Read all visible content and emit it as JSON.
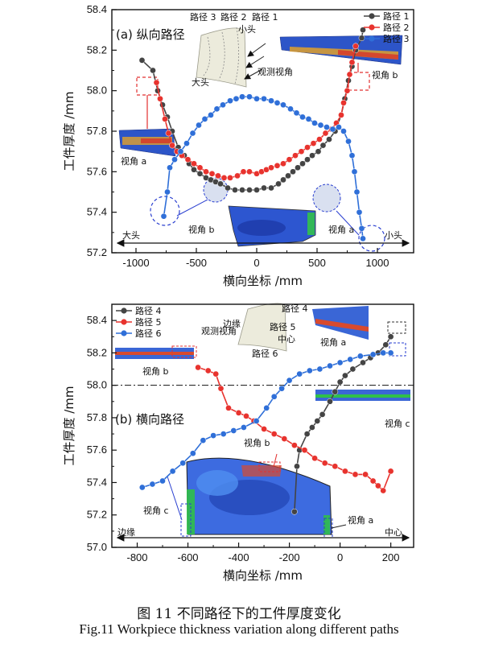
{
  "caption": {
    "cn": "图 11  不同路径下的工件厚度变化",
    "en": "Fig.11  Workpiece thickness variation along different paths"
  },
  "colors": {
    "path_gray": "#444444",
    "path_red": "#e8332e",
    "path_blue": "#2f6fd8",
    "highlight": "#e23030",
    "view_blue": "#2a3fd0"
  },
  "chart_data": [
    {
      "type": "line",
      "title": "(a) 纵向路径",
      "xlabel": "横向坐标 /mm",
      "ylabel": "工件厚度 /mm",
      "xlim": [
        -1200,
        1300
      ],
      "ylim": [
        57.2,
        58.4
      ],
      "xticks": [
        -1000,
        -500,
        0,
        500,
        1000
      ],
      "yticks": [
        57.2,
        57.4,
        57.6,
        57.8,
        58.0,
        58.2,
        58.4
      ],
      "legend": "top-right",
      "series": [
        {
          "name": "路径 1",
          "color": "#444444",
          "points": [
            [
              -950,
              58.15
            ],
            [
              -860,
              58.1
            ],
            [
              -820,
              58.0
            ],
            [
              -780,
              57.93
            ],
            [
              -740,
              57.87
            ],
            [
              -700,
              57.8
            ],
            [
              -650,
              57.72
            ],
            [
              -600,
              57.68
            ],
            [
              -560,
              57.64
            ],
            [
              -520,
              57.61
            ],
            [
              -470,
              57.59
            ],
            [
              -420,
              57.57
            ],
            [
              -380,
              57.56
            ],
            [
              -340,
              57.55
            ],
            [
              -300,
              57.54
            ],
            [
              -240,
              57.52
            ],
            [
              -180,
              57.51
            ],
            [
              -120,
              57.51
            ],
            [
              -60,
              57.51
            ],
            [
              0,
              57.51
            ],
            [
              60,
              57.52
            ],
            [
              120,
              57.52
            ],
            [
              180,
              57.54
            ],
            [
              220,
              57.56
            ],
            [
              260,
              57.58
            ],
            [
              300,
              57.6
            ],
            [
              340,
              57.62
            ],
            [
              380,
              57.64
            ],
            [
              420,
              57.66
            ],
            [
              460,
              57.68
            ],
            [
              510,
              57.7
            ],
            [
              550,
              57.73
            ],
            [
              600,
              57.76
            ],
            [
              650,
              57.8
            ],
            [
              700,
              57.88
            ],
            [
              730,
              57.96
            ],
            [
              760,
              58.05
            ],
            [
              790,
              58.12
            ],
            [
              820,
              58.2
            ],
            [
              870,
              58.26
            ],
            [
              880,
              58.3
            ]
          ]
        },
        {
          "name": "路径 2",
          "color": "#e8332e",
          "points": [
            [
              -830,
              58.04
            ],
            [
              -800,
              57.96
            ],
            [
              -760,
              57.86
            ],
            [
              -730,
              57.79
            ],
            [
              -700,
              57.73
            ],
            [
              -660,
              57.7
            ],
            [
              -620,
              57.68
            ],
            [
              -570,
              57.66
            ],
            [
              -520,
              57.64
            ],
            [
              -470,
              57.62
            ],
            [
              -420,
              57.6
            ],
            [
              -370,
              57.59
            ],
            [
              -320,
              57.58
            ],
            [
              -270,
              57.57
            ],
            [
              -220,
              57.57
            ],
            [
              -160,
              57.58
            ],
            [
              -110,
              57.6
            ],
            [
              -60,
              57.6
            ],
            [
              0,
              57.59
            ],
            [
              40,
              57.6
            ],
            [
              80,
              57.61
            ],
            [
              120,
              57.62
            ],
            [
              170,
              57.63
            ],
            [
              220,
              57.64
            ],
            [
              270,
              57.66
            ],
            [
              320,
              57.68
            ],
            [
              370,
              57.7
            ],
            [
              420,
              57.72
            ],
            [
              470,
              57.74
            ],
            [
              520,
              57.76
            ],
            [
              570,
              57.79
            ],
            [
              620,
              57.81
            ],
            [
              660,
              57.84
            ],
            [
              700,
              57.88
            ],
            [
              720,
              57.94
            ],
            [
              750,
              58.0
            ],
            [
              770,
              58.08
            ],
            [
              790,
              58.14
            ],
            [
              820,
              58.22
            ]
          ]
        },
        {
          "name": "路径 3",
          "color": "#2f6fd8",
          "points": [
            [
              -770,
              57.38
            ],
            [
              -740,
              57.5
            ],
            [
              -720,
              57.62
            ],
            [
              -680,
              57.66
            ],
            [
              -630,
              57.7
            ],
            [
              -580,
              57.74
            ],
            [
              -530,
              57.79
            ],
            [
              -480,
              57.83
            ],
            [
              -430,
              57.86
            ],
            [
              -380,
              57.88
            ],
            [
              -330,
              57.91
            ],
            [
              -280,
              57.93
            ],
            [
              -220,
              57.95
            ],
            [
              -170,
              57.96
            ],
            [
              -120,
              57.97
            ],
            [
              -60,
              57.97
            ],
            [
              0,
              57.96
            ],
            [
              60,
              57.96
            ],
            [
              120,
              57.95
            ],
            [
              170,
              57.94
            ],
            [
              220,
              57.93
            ],
            [
              280,
              57.91
            ],
            [
              330,
              57.89
            ],
            [
              380,
              57.87
            ],
            [
              430,
              57.86
            ],
            [
              480,
              57.84
            ],
            [
              530,
              57.83
            ],
            [
              580,
              57.82
            ],
            [
              630,
              57.81
            ],
            [
              680,
              57.82
            ],
            [
              720,
              57.8
            ],
            [
              760,
              57.75
            ],
            [
              790,
              57.68
            ],
            [
              810,
              57.6
            ],
            [
              830,
              57.5
            ],
            [
              850,
              57.4
            ],
            [
              870,
              57.32
            ],
            [
              880,
              57.27
            ]
          ]
        }
      ],
      "annotations": [
        "路径 3",
        "路径 2",
        "路径 1",
        "小头",
        "大头",
        "观测视角",
        "视角 a",
        "视角 b",
        "视角 b",
        "视角 a",
        "大头",
        "小头"
      ]
    },
    {
      "type": "line",
      "title": "(b) 横向路径",
      "xlabel": "横向坐标 /mm",
      "ylabel": "工件厚度 /mm",
      "xlim": [
        -900,
        290
      ],
      "ylim": [
        57.0,
        58.5
      ],
      "xticks": [
        -800,
        -600,
        -400,
        -200,
        0,
        200
      ],
      "yticks": [
        57.0,
        57.2,
        57.4,
        57.6,
        57.8,
        58.0,
        58.2,
        58.4
      ],
      "reference_line": 58.0,
      "legend": "top-left",
      "series": [
        {
          "name": "路径 4",
          "color": "#444444",
          "points": [
            [
              -180,
              57.22
            ],
            [
              -170,
              57.5
            ],
            [
              -160,
              57.6
            ],
            [
              -130,
              57.7
            ],
            [
              -110,
              57.74
            ],
            [
              -90,
              57.78
            ],
            [
              -70,
              57.82
            ],
            [
              -40,
              57.9
            ],
            [
              -20,
              57.96
            ],
            [
              0,
              58.02
            ],
            [
              20,
              58.06
            ],
            [
              50,
              58.1
            ],
            [
              90,
              58.14
            ],
            [
              120,
              58.17
            ],
            [
              150,
              58.2
            ],
            [
              180,
              58.25
            ],
            [
              200,
              58.3
            ]
          ]
        },
        {
          "name": "路径 5",
          "color": "#e8332e",
          "points": [
            [
              -560,
              58.11
            ],
            [
              -520,
              58.09
            ],
            [
              -490,
              58.07
            ],
            [
              -470,
              57.98
            ],
            [
              -440,
              57.86
            ],
            [
              -400,
              57.83
            ],
            [
              -370,
              57.81
            ],
            [
              -340,
              57.78
            ],
            [
              -300,
              57.73
            ],
            [
              -260,
              57.7
            ],
            [
              -220,
              57.67
            ],
            [
              -180,
              57.63
            ],
            [
              -140,
              57.6
            ],
            [
              -100,
              57.55
            ],
            [
              -60,
              57.52
            ],
            [
              -20,
              57.5
            ],
            [
              20,
              57.47
            ],
            [
              60,
              57.45
            ],
            [
              100,
              57.45
            ],
            [
              130,
              57.41
            ],
            [
              150,
              57.38
            ],
            [
              170,
              57.35
            ],
            [
              200,
              57.47
            ]
          ]
        },
        {
          "name": "路径 6",
          "color": "#2f6fd8",
          "points": [
            [
              -780,
              57.37
            ],
            [
              -740,
              57.39
            ],
            [
              -700,
              57.41
            ],
            [
              -660,
              57.47
            ],
            [
              -620,
              57.52
            ],
            [
              -580,
              57.58
            ],
            [
              -540,
              57.66
            ],
            [
              -500,
              57.69
            ],
            [
              -460,
              57.7
            ],
            [
              -420,
              57.72
            ],
            [
              -380,
              57.74
            ],
            [
              -330,
              57.78
            ],
            [
              -290,
              57.86
            ],
            [
              -260,
              57.93
            ],
            [
              -230,
              57.98
            ],
            [
              -200,
              58.03
            ],
            [
              -160,
              58.07
            ],
            [
              -120,
              58.09
            ],
            [
              -80,
              58.1
            ],
            [
              -40,
              58.12
            ],
            [
              0,
              58.14
            ],
            [
              40,
              58.16
            ],
            [
              80,
              58.18
            ],
            [
              130,
              58.19
            ],
            [
              170,
              58.2
            ],
            [
              200,
              58.2
            ]
          ]
        }
      ],
      "annotations": [
        "路径 4",
        "路径 5",
        "路径 6",
        "边缘",
        "中心",
        "观测视角",
        "视角 a",
        "视角 b",
        "视角 c",
        "视角 b",
        "视角 c",
        "视角 a",
        "边缘",
        "中心"
      ]
    }
  ]
}
